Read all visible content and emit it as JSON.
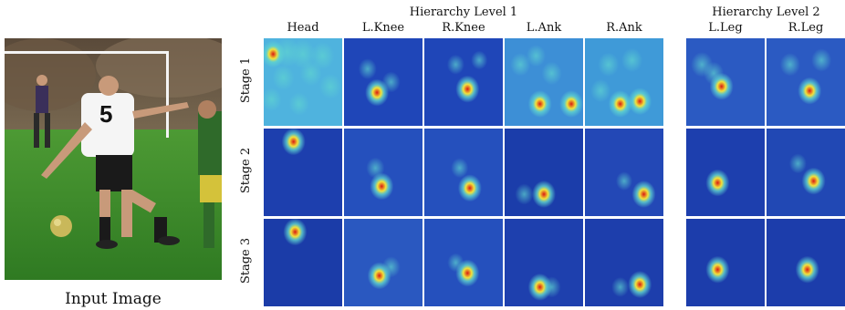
{
  "figure": {
    "input_caption": "Input Image",
    "groups": [
      {
        "title": "Hierarchy Level 1",
        "columns": [
          "Head",
          "L.Knee",
          "R.Knee",
          "L.Ank",
          "R.Ank"
        ]
      },
      {
        "title": "Hierarchy Level 2",
        "columns": [
          "L.Leg",
          "R.Leg"
        ]
      }
    ],
    "rows": [
      "Stage 1",
      "Stage 2",
      "Stage 3"
    ],
    "photo": {
      "jersey_number": "5"
    },
    "colors": {
      "heatmap_low": "#1b3fb0",
      "heatmap_mid": "#5fd4d0",
      "heatmap_high": "#d91a12",
      "grass": "#3f8a2a"
    },
    "heatmaps": [
      [
        {
          "bg": "#4fb3de",
          "blobs": [
            [
              0.12,
              0.18,
              0.9
            ],
            [
              0.3,
              0.16,
              0.8
            ],
            [
              0.5,
              0.18,
              0.8
            ],
            [
              0.75,
              0.2,
              0.7
            ],
            [
              0.25,
              0.45,
              0.6
            ],
            [
              0.6,
              0.4,
              0.6
            ],
            [
              0.85,
              0.55,
              0.6
            ],
            [
              0.1,
              0.7,
              0.5
            ],
            [
              0.45,
              0.75,
              0.5
            ]
          ]
        },
        {
          "bg": "#1f46b8",
          "blobs": [
            [
              0.42,
              0.62,
              1.0
            ],
            [
              0.3,
              0.35,
              0.4
            ],
            [
              0.6,
              0.5,
              0.4
            ]
          ]
        },
        {
          "bg": "#1f46b8",
          "blobs": [
            [
              0.55,
              0.58,
              1.0
            ],
            [
              0.4,
              0.3,
              0.35
            ],
            [
              0.7,
              0.25,
              0.3
            ]
          ]
        },
        {
          "bg": "#3d8fd6",
          "blobs": [
            [
              0.45,
              0.75,
              0.9
            ],
            [
              0.85,
              0.75,
              0.9
            ],
            [
              0.2,
              0.3,
              0.5
            ],
            [
              0.6,
              0.4,
              0.5
            ],
            [
              0.4,
              0.2,
              0.45
            ]
          ]
        },
        {
          "bg": "#3f9ad8",
          "blobs": [
            [
              0.45,
              0.75,
              0.9
            ],
            [
              0.7,
              0.72,
              0.9
            ],
            [
              0.3,
              0.3,
              0.55
            ],
            [
              0.6,
              0.25,
              0.55
            ],
            [
              0.2,
              0.6,
              0.5
            ]
          ]
        }
      ],
      [
        {
          "bg": "#1d3fae",
          "blobs": [
            [
              0.38,
              0.15,
              1.0
            ]
          ]
        },
        {
          "bg": "#2550bd",
          "blobs": [
            [
              0.48,
              0.66,
              1.0
            ],
            [
              0.4,
              0.45,
              0.4
            ]
          ]
        },
        {
          "bg": "#2550bd",
          "blobs": [
            [
              0.58,
              0.68,
              1.0
            ],
            [
              0.45,
              0.45,
              0.35
            ]
          ]
        },
        {
          "bg": "#1b3daa",
          "blobs": [
            [
              0.5,
              0.75,
              0.9
            ],
            [
              0.25,
              0.75,
              0.4
            ]
          ]
        },
        {
          "bg": "#2348b6",
          "blobs": [
            [
              0.75,
              0.75,
              0.9
            ],
            [
              0.5,
              0.6,
              0.3
            ]
          ]
        }
      ],
      [
        {
          "bg": "#1b3ca8",
          "blobs": [
            [
              0.4,
              0.15,
              1.0
            ]
          ]
        },
        {
          "bg": "#2a58c0",
          "blobs": [
            [
              0.45,
              0.65,
              1.0
            ],
            [
              0.6,
              0.55,
              0.4
            ]
          ]
        },
        {
          "bg": "#2550bd",
          "blobs": [
            [
              0.55,
              0.62,
              1.0
            ],
            [
              0.4,
              0.5,
              0.3
            ]
          ]
        },
        {
          "bg": "#1e40ae",
          "blobs": [
            [
              0.45,
              0.78,
              0.9
            ],
            [
              0.6,
              0.78,
              0.4
            ]
          ]
        },
        {
          "bg": "#1d3eac",
          "blobs": [
            [
              0.7,
              0.75,
              0.9
            ],
            [
              0.45,
              0.78,
              0.35
            ]
          ]
        }
      ]
    ],
    "heatmaps_l2": [
      [
        {
          "bg": "#2b5ac2",
          "blobs": [
            [
              0.45,
              0.55,
              1.0
            ],
            [
              0.2,
              0.3,
              0.6
            ],
            [
              0.35,
              0.4,
              0.5
            ]
          ]
        },
        {
          "bg": "#2b5ac2",
          "blobs": [
            [
              0.55,
              0.6,
              1.0
            ],
            [
              0.3,
              0.3,
              0.5
            ],
            [
              0.7,
              0.25,
              0.5
            ]
          ]
        }
      ],
      [
        {
          "bg": "#1d3fae",
          "blobs": [
            [
              0.4,
              0.62,
              1.0
            ]
          ]
        },
        {
          "bg": "#2148b4",
          "blobs": [
            [
              0.6,
              0.6,
              1.0
            ],
            [
              0.4,
              0.4,
              0.35
            ]
          ]
        }
      ],
      [
        {
          "bg": "#1c3dab",
          "blobs": [
            [
              0.4,
              0.58,
              1.0
            ]
          ]
        },
        {
          "bg": "#1c3dab",
          "blobs": [
            [
              0.52,
              0.58,
              1.0
            ]
          ]
        }
      ]
    ]
  }
}
